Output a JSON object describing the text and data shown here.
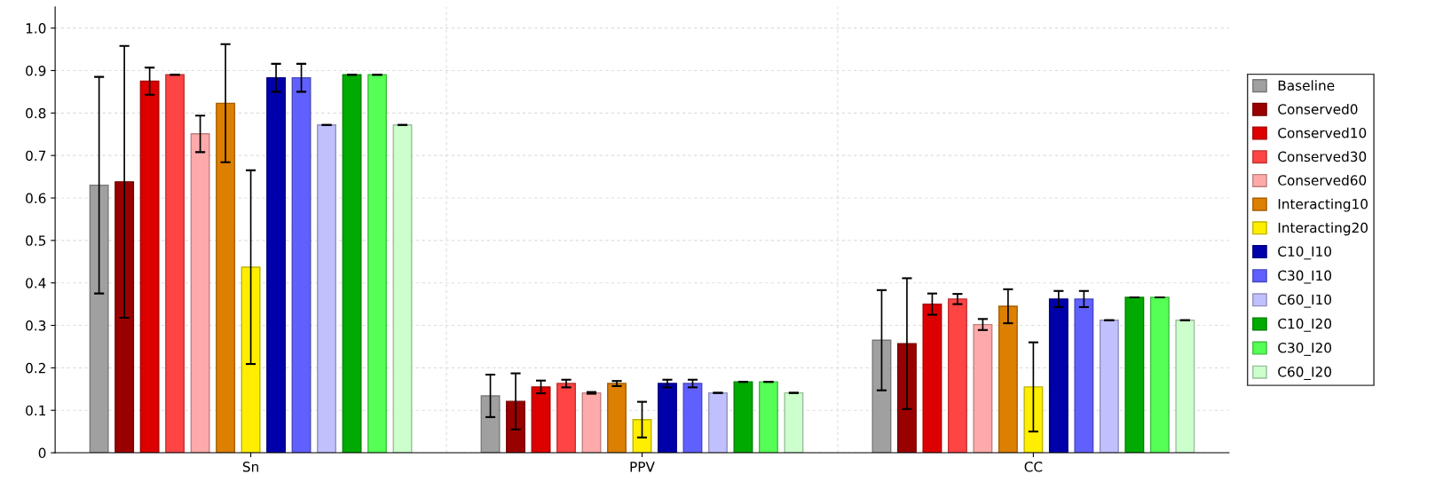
{
  "chart_data": {
    "type": "bar",
    "categories": [
      "Sn",
      "PPV",
      "CC"
    ],
    "ylim": [
      0,
      1.05
    ],
    "yticks": [
      {
        "value": 0,
        "label": "0"
      },
      0.1,
      0.2,
      0.3,
      0.4,
      0.5,
      0.6,
      0.7,
      0.8,
      0.9,
      {
        "value": 1.0,
        "label": "1.0"
      }
    ],
    "grid": true,
    "legend": "right",
    "series": [
      {
        "name": "Baseline",
        "color": "#a0a0a0",
        "values": [
          0.63,
          0.134,
          0.265
        ],
        "errors": [
          0.255,
          0.05,
          0.118
        ]
      },
      {
        "name": "Conserved0",
        "color": "#990000",
        "values": [
          0.638,
          0.121,
          0.257
        ],
        "errors": [
          0.32,
          0.066,
          0.154
        ]
      },
      {
        "name": "Conserved10",
        "color": "#dd0000",
        "values": [
          0.875,
          0.155,
          0.35
        ],
        "errors": [
          0.032,
          0.015,
          0.025
        ]
      },
      {
        "name": "Conserved30",
        "color": "#ff4444",
        "values": [
          0.89,
          0.163,
          0.362
        ],
        "errors": [
          0,
          0.009,
          0.012
        ]
      },
      {
        "name": "Conserved60",
        "color": "#ffaaaa",
        "values": [
          0.751,
          0.141,
          0.302
        ],
        "errors": [
          0.043,
          0.002,
          0.013
        ]
      },
      {
        "name": "Interacting10",
        "color": "#dd7f00",
        "values": [
          0.823,
          0.163,
          0.345
        ],
        "errors": [
          0.139,
          0.006,
          0.04
        ]
      },
      {
        "name": "Interacting20",
        "color": "#ffee00",
        "values": [
          0.437,
          0.078,
          0.155
        ],
        "errors": [
          0.228,
          0.042,
          0.105
        ]
      },
      {
        "name": "C10_I10",
        "color": "#0000aa",
        "values": [
          0.883,
          0.163,
          0.362
        ],
        "errors": [
          0.033,
          0.009,
          0.019
        ]
      },
      {
        "name": "C30_I10",
        "color": "#6060ff",
        "values": [
          0.883,
          0.163,
          0.362
        ],
        "errors": [
          0.033,
          0.009,
          0.019
        ]
      },
      {
        "name": "C60_I10",
        "color": "#c0c0ff",
        "values": [
          0.772,
          0.141,
          0.312
        ],
        "errors": [
          0,
          0,
          0
        ]
      },
      {
        "name": "C10_I20",
        "color": "#00aa00",
        "values": [
          0.89,
          0.167,
          0.366
        ],
        "errors": [
          0,
          0,
          0
        ]
      },
      {
        "name": "C30_I20",
        "color": "#55ff55",
        "values": [
          0.89,
          0.167,
          0.366
        ],
        "errors": [
          0,
          0,
          0
        ]
      },
      {
        "name": "C60_I20",
        "color": "#ccffcc",
        "values": [
          0.772,
          0.141,
          0.312
        ],
        "errors": [
          0,
          0,
          0
        ]
      }
    ]
  }
}
